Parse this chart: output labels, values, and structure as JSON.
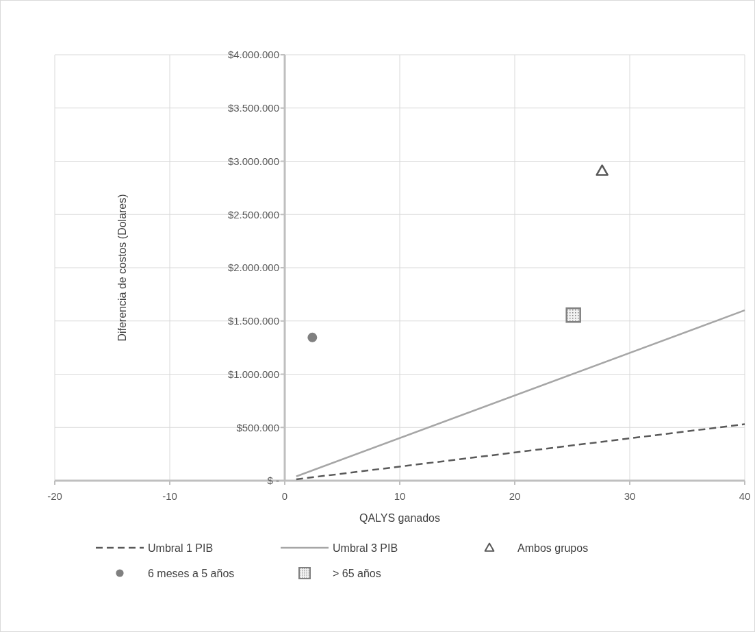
{
  "chart_data": {
    "type": "scatter",
    "xlabel": "QALYS ganados",
    "ylabel": "Diferencia de costos (Dolares)",
    "xlim": [
      -20,
      40
    ],
    "xticks": [
      -20,
      -10,
      0,
      10,
      20,
      30,
      40
    ],
    "ylim": [
      0,
      4000000
    ],
    "yticks": [
      {
        "value": 0,
        "label": "$ -"
      },
      {
        "value": 500000,
        "label": "$500.000"
      },
      {
        "value": 1000000,
        "label": "$1.000.000"
      },
      {
        "value": 1500000,
        "label": "$1.500.000"
      },
      {
        "value": 2000000,
        "label": "$2.000.000"
      },
      {
        "value": 2500000,
        "label": "$2.500.000"
      },
      {
        "value": 3000000,
        "label": "$3.000.000"
      },
      {
        "value": 3500000,
        "label": "$3.500.000"
      },
      {
        "value": 4000000,
        "label": "$4.000.000"
      }
    ],
    "grid": true,
    "legend": "bottom",
    "series": [
      {
        "name": "Umbral 1 PIB",
        "type": "line",
        "line_style": "dashed",
        "color": "#595959",
        "x": [
          1,
          40
        ],
        "values": [
          13000,
          530000
        ]
      },
      {
        "name": "Umbral 3 PIB",
        "type": "line",
        "line_style": "solid",
        "color": "#a6a6a6",
        "x": [
          1,
          40
        ],
        "values": [
          40000,
          1600000
        ]
      },
      {
        "name": "Ambos grupos",
        "marker": "triangle",
        "color": "#595959",
        "x": [
          27.6
        ],
        "values": [
          2910000
        ]
      },
      {
        "name": "6 meses a 5 años",
        "marker": "circle",
        "color": "#808080",
        "x": [
          2.4
        ],
        "values": [
          1345000
        ]
      },
      {
        "name": "> 65 años",
        "marker": "square",
        "color": "#808080",
        "x": [
          25.1
        ],
        "values": [
          1555000
        ]
      }
    ]
  }
}
